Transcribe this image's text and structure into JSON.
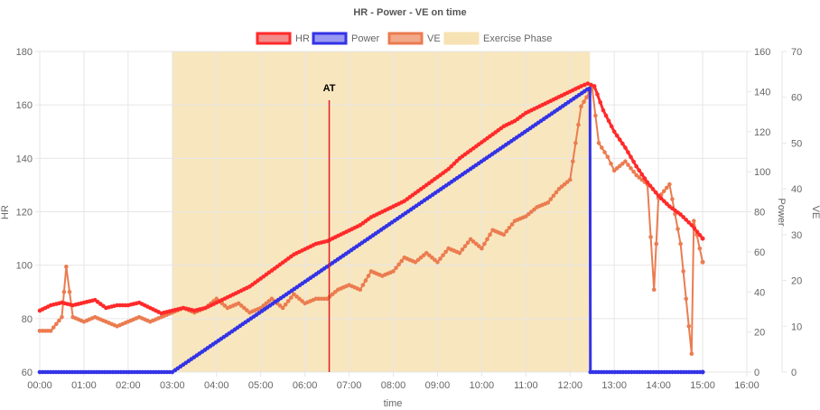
{
  "chart_data": {
    "type": "line",
    "title": "HR - Power - VE on time",
    "xlabel": "time",
    "x_ticks": [
      "00:00",
      "01:00",
      "02:00",
      "03:00",
      "04:00",
      "05:00",
      "06:00",
      "07:00",
      "08:00",
      "09:00",
      "10:00",
      "11:00",
      "12:00",
      "13:00",
      "14:00",
      "15:00",
      "16:00"
    ],
    "xlim_minutes": [
      0,
      16
    ],
    "axes": {
      "hr": {
        "label": "HR",
        "range": [
          60,
          180
        ],
        "ticks": [
          60,
          80,
          100,
          120,
          140,
          160,
          180
        ]
      },
      "power": {
        "label": "Power",
        "range": [
          0,
          160
        ],
        "ticks": [
          0,
          20,
          40,
          60,
          80,
          100,
          120,
          140,
          160
        ]
      },
      "ve": {
        "label": "VE",
        "range": [
          0,
          70
        ],
        "ticks": [
          0,
          10,
          20,
          30,
          40,
          50,
          60,
          70
        ]
      }
    },
    "legend": {
      "position": "top",
      "entries": [
        {
          "name": "HR",
          "fill": "#f38b8b",
          "stroke": "#ff2a2a"
        },
        {
          "name": "Power",
          "fill": "#9999f3",
          "stroke": "#3333e6"
        },
        {
          "name": "VE",
          "fill": "#f1a98a",
          "stroke": "#eb7c50"
        },
        {
          "name": "Exercise Phase",
          "fill": "#f7e2b3",
          "stroke": "#f7e2b3"
        }
      ]
    },
    "exercise_phase": {
      "start_min": 3.0,
      "end_min": 12.45
    },
    "annotation": {
      "label": "AT",
      "x_min": 6.55,
      "color": "#e02020"
    },
    "series": [
      {
        "name": "HR",
        "axis": "hr",
        "color": "#ff2a2a",
        "x": [
          0.0,
          0.25,
          0.5,
          0.75,
          1.0,
          1.25,
          1.5,
          1.75,
          2.0,
          2.25,
          2.5,
          2.75,
          3.0,
          3.25,
          3.5,
          3.75,
          4.0,
          4.25,
          4.5,
          4.75,
          5.0,
          5.25,
          5.5,
          5.75,
          6.0,
          6.25,
          6.5,
          6.75,
          7.0,
          7.25,
          7.5,
          7.75,
          8.0,
          8.25,
          8.5,
          8.75,
          9.0,
          9.25,
          9.5,
          9.75,
          10.0,
          10.25,
          10.5,
          10.75,
          11.0,
          11.25,
          11.5,
          11.75,
          12.0,
          12.25,
          12.4,
          12.55,
          12.75,
          13.0,
          13.25,
          13.5,
          13.75,
          14.0,
          14.25,
          14.5,
          14.75,
          15.0
        ],
        "values": [
          83,
          85,
          86,
          85,
          86,
          87,
          84,
          85,
          85,
          86,
          84,
          82,
          83,
          84,
          83,
          84,
          86,
          88,
          90,
          92,
          95,
          98,
          101,
          104,
          106,
          108,
          109,
          111,
          113,
          115,
          118,
          120,
          122,
          124,
          127,
          130,
          133,
          136,
          140,
          143,
          146,
          149,
          152,
          154,
          157,
          159,
          161,
          163,
          165,
          167,
          168,
          167,
          158,
          150,
          144,
          137,
          131,
          126,
          122,
          119,
          115,
          110
        ]
      },
      {
        "name": "Power",
        "axis": "power",
        "color": "#3333e6",
        "x": [
          0.0,
          3.0,
          12.45,
          12.46,
          15.0
        ],
        "values": [
          0,
          0,
          142,
          0,
          0
        ]
      },
      {
        "name": "VE",
        "axis": "ve",
        "color": "#eb7c50",
        "x": [
          0.0,
          0.25,
          0.5,
          0.6,
          0.75,
          1.0,
          1.25,
          1.5,
          1.75,
          2.0,
          2.25,
          2.5,
          2.75,
          3.0,
          3.25,
          3.5,
          3.75,
          4.0,
          4.25,
          4.5,
          4.75,
          5.0,
          5.25,
          5.5,
          5.75,
          6.0,
          6.25,
          6.5,
          6.75,
          7.0,
          7.25,
          7.5,
          7.75,
          8.0,
          8.25,
          8.5,
          8.75,
          9.0,
          9.25,
          9.5,
          9.75,
          10.0,
          10.25,
          10.5,
          10.75,
          11.0,
          11.25,
          11.5,
          11.75,
          12.0,
          12.25,
          12.5,
          12.65,
          12.85,
          13.0,
          13.25,
          13.5,
          13.75,
          13.9,
          14.0,
          14.25,
          14.5,
          14.75,
          14.8,
          15.0
        ],
        "values": [
          9,
          9,
          12,
          23,
          12,
          11,
          12,
          11,
          10,
          11,
          12,
          11,
          12,
          13,
          14,
          13,
          14,
          16,
          14,
          15,
          13,
          14,
          16,
          14,
          17,
          15,
          16,
          16,
          18,
          19,
          18,
          22,
          21,
          22,
          25,
          24,
          26,
          24,
          27,
          26,
          29,
          27,
          31,
          30,
          33,
          34,
          36,
          37,
          40,
          42,
          58,
          62,
          50,
          47,
          44,
          46,
          43,
          41,
          18,
          38,
          41,
          28,
          4,
          33,
          24
        ]
      }
    ]
  }
}
